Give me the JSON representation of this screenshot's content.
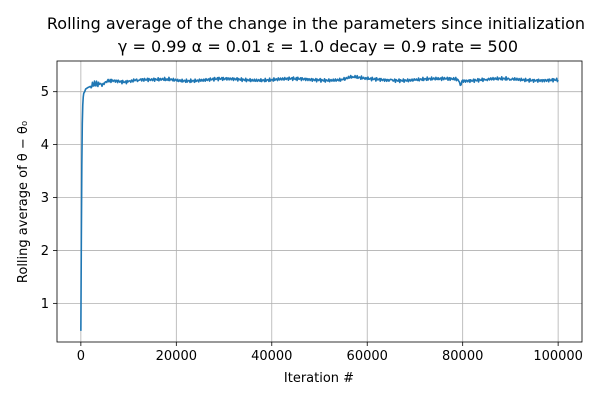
{
  "chart_data": {
    "type": "line",
    "title": "Rolling average of the change in the parameters since initialization",
    "subtitle": "γ = 0.99 α = 0.01 ε = 1.0 decay = 0.9 rate = 500",
    "xlabel": "Iteration #",
    "ylabel": "Rolling average of θ − θ₀",
    "xlim": [
      -5000,
      105000
    ],
    "ylim": [
      0.27,
      5.58
    ],
    "xticks": [
      0,
      20000,
      40000,
      60000,
      80000,
      100000
    ],
    "yticks": [
      1,
      2,
      3,
      4,
      5
    ],
    "grid": true,
    "legend": "none",
    "series": [
      {
        "color": "#1f77b4",
        "x": [
          0,
          100,
          200,
          300,
          400,
          500,
          600,
          800,
          1000,
          1500,
          2000,
          3000,
          4000,
          5000,
          6000,
          8000,
          10000,
          12000,
          15000,
          18000,
          20000,
          25000,
          30000,
          35000,
          40000,
          45000,
          50000,
          55000,
          57000,
          60000,
          65000,
          70000,
          75000,
          79000,
          79500,
          80000,
          85000,
          90000,
          95000,
          100000
        ],
        "y": [
          0.48,
          2.2,
          3.6,
          4.4,
          4.75,
          4.9,
          4.97,
          5.0,
          5.05,
          5.08,
          5.1,
          5.12,
          5.15,
          5.17,
          5.19,
          5.2,
          5.2,
          5.21,
          5.21,
          5.22,
          5.22,
          5.22,
          5.23,
          5.23,
          5.23,
          5.23,
          5.23,
          5.23,
          5.27,
          5.23,
          5.23,
          5.22,
          5.23,
          5.23,
          5.12,
          5.22,
          5.23,
          5.23,
          5.23,
          5.22
        ]
      }
    ]
  }
}
